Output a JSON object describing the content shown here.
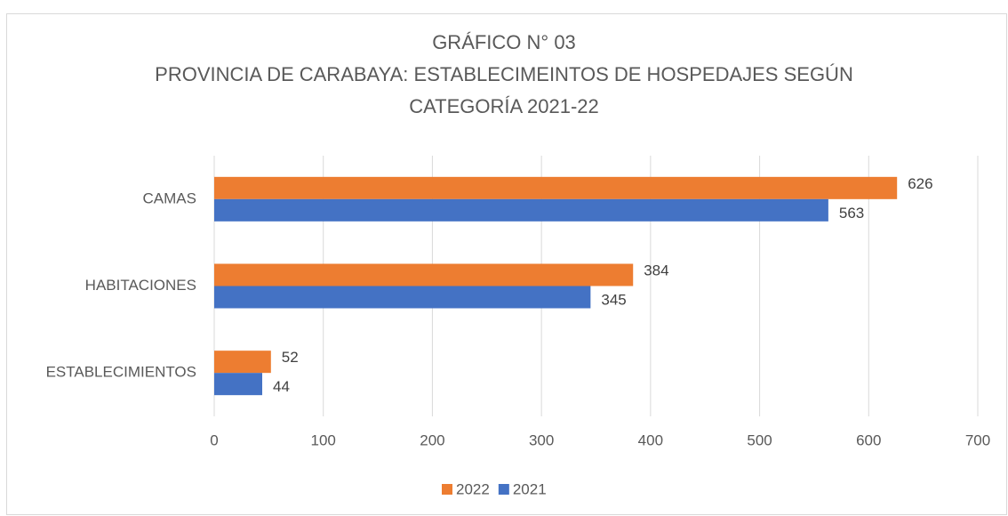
{
  "chart_data": {
    "type": "bar",
    "orientation": "horizontal",
    "title": [
      "GRÁFICO N° 03",
      "PROVINCIA DE CARABAYA: ESTABLECIMEINTOS DE HOSPEDAJES SEGÚN",
      "CATEGORÍA 2021-22"
    ],
    "categories": [
      "CAMAS",
      "HABITACIONES",
      "ESTABLECIMIENTOS"
    ],
    "series": [
      {
        "name": "2022",
        "color": "#ed7d31",
        "values": [
          626,
          384,
          52
        ]
      },
      {
        "name": "2021",
        "color": "#4472c4",
        "values": [
          563,
          345,
          44
        ]
      }
    ],
    "xlim": [
      0,
      700
    ],
    "xticks": [
      0,
      100,
      200,
      300,
      400,
      500,
      600,
      700
    ],
    "grid": true,
    "legend": "bottom"
  }
}
